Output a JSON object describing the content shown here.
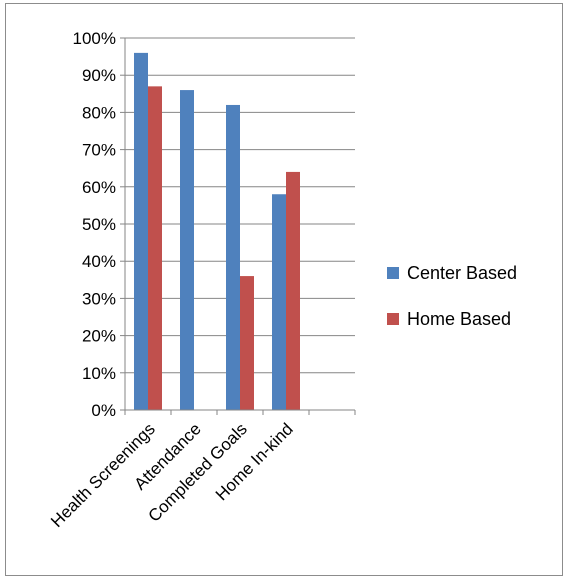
{
  "chart_data": {
    "type": "bar",
    "categories": [
      "Health Screenings",
      "Attendance",
      "Completed Goals",
      "Home In-kind"
    ],
    "series": [
      {
        "name": "Center Based",
        "values": [
          96,
          86,
          82,
          58
        ],
        "color": "#4f81bd"
      },
      {
        "name": "Home Based",
        "values": [
          87,
          null,
          36,
          64
        ],
        "color": "#c0504d"
      }
    ],
    "yticks": [
      "0%",
      "10%",
      "20%",
      "30%",
      "40%",
      "50%",
      "60%",
      "70%",
      "80%",
      "90%",
      "100%"
    ],
    "ylim": [
      0,
      100
    ],
    "grid": true,
    "legend": "right"
  }
}
